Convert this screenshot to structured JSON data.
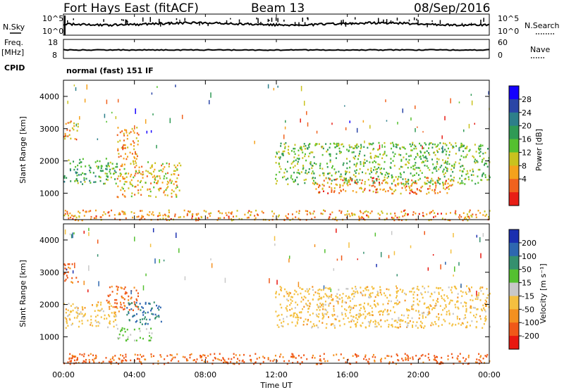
{
  "header": {
    "station": "Fort Hays East (fitACF)",
    "beam": "Beam 13",
    "date": "08/Sep/2016"
  },
  "strips": {
    "nsky_label": "N.Sky",
    "nsearch_label": "N.Search",
    "noise_ticks": [
      "10^5",
      "10^0"
    ],
    "noise_ticks_right": [
      "10^5",
      "10^0"
    ],
    "freq_label": "Freq.",
    "freq_unit": "[MHz]",
    "freq_ticks": [
      "18",
      "8"
    ],
    "nave_label": "Nave",
    "nave_ticks": [
      "60",
      "0"
    ],
    "cpid_label": "CPID",
    "cpid_value": "normal (fast) 151 IF"
  },
  "chart_data": [
    {
      "type": "heatmap",
      "name": "power",
      "ylabel": "Slant Range [km]",
      "xlabel": "Time UT",
      "xlim": [
        0,
        24
      ],
      "ylim": [
        180,
        4500
      ],
      "yticks": [
        "4000",
        "3000",
        "2000",
        "1000"
      ],
      "colorbar": {
        "label": "Power [dB]",
        "ticks": [
          "28",
          "24",
          "20",
          "16",
          "12",
          "8",
          "4"
        ],
        "colors": [
          "#1400ff",
          "#2a45a6",
          "#2d7f8a",
          "#2f9a55",
          "#55c02f",
          "#c9c21e",
          "#f5a21c",
          "#f0621e",
          "#e81e16"
        ]
      },
      "regions": [
        {
          "t0": 0.0,
          "t1": 3.0,
          "r0": 1300,
          "r1": 2100,
          "level": 18
        },
        {
          "t0": 0.0,
          "t1": 0.8,
          "r0": 2700,
          "r1": 3300,
          "level": 9
        },
        {
          "t0": 3.0,
          "t1": 4.2,
          "r0": 2000,
          "r1": 3100,
          "level": 8
        },
        {
          "t0": 3.0,
          "t1": 6.6,
          "r0": 900,
          "r1": 2000,
          "level": 10
        },
        {
          "t0": 11.9,
          "t1": 24.0,
          "r0": 1300,
          "r1": 2600,
          "level": 16
        },
        {
          "t0": 14.0,
          "t1": 22.0,
          "r0": 1000,
          "r1": 1500,
          "level": 6
        },
        {
          "t0": 0.0,
          "t1": 24.0,
          "r0": 180,
          "r1": 500,
          "level": 7
        }
      ]
    },
    {
      "type": "heatmap",
      "name": "velocity",
      "ylabel": "Slant Range [km]",
      "xlabel": "Time UT",
      "xlim": [
        0,
        24
      ],
      "ylim": [
        180,
        4500
      ],
      "yticks": [
        "4000",
        "3000",
        "2000",
        "1000"
      ],
      "xticks": [
        "00:00",
        "04:00",
        "08:00",
        "12:00",
        "16:00",
        "20:00",
        "00:00"
      ],
      "colorbar": {
        "label": "Velocity [m s⁻¹]",
        "ticks": [
          "200",
          "100",
          "50",
          "15",
          "-15",
          "-50",
          "-100",
          "-200"
        ],
        "colors": [
          "#1a2fb0",
          "#2e67b0",
          "#35906e",
          "#54c030",
          "#c8c8c8",
          "#f4c040",
          "#f49020",
          "#f05818",
          "#e81810"
        ]
      },
      "regions": [
        {
          "t0": 0.0,
          "t1": 3.0,
          "r0": 1300,
          "r1": 2100,
          "level": 0
        },
        {
          "t0": 0.0,
          "t1": 0.8,
          "r0": 2700,
          "r1": 3300,
          "level": -40
        },
        {
          "t0": 2.4,
          "t1": 4.2,
          "r0": 1800,
          "r1": 2600,
          "level": -40
        },
        {
          "t0": 3.5,
          "t1": 5.5,
          "r0": 1400,
          "r1": 2100,
          "level": 150
        },
        {
          "t0": 3.0,
          "t1": 5.0,
          "r0": 900,
          "r1": 1300,
          "level": 40
        },
        {
          "t0": 11.9,
          "t1": 24.0,
          "r0": 1300,
          "r1": 2600,
          "level": 0
        },
        {
          "t0": 0.0,
          "t1": 24.0,
          "r0": 180,
          "r1": 500,
          "level": -40
        }
      ]
    }
  ]
}
